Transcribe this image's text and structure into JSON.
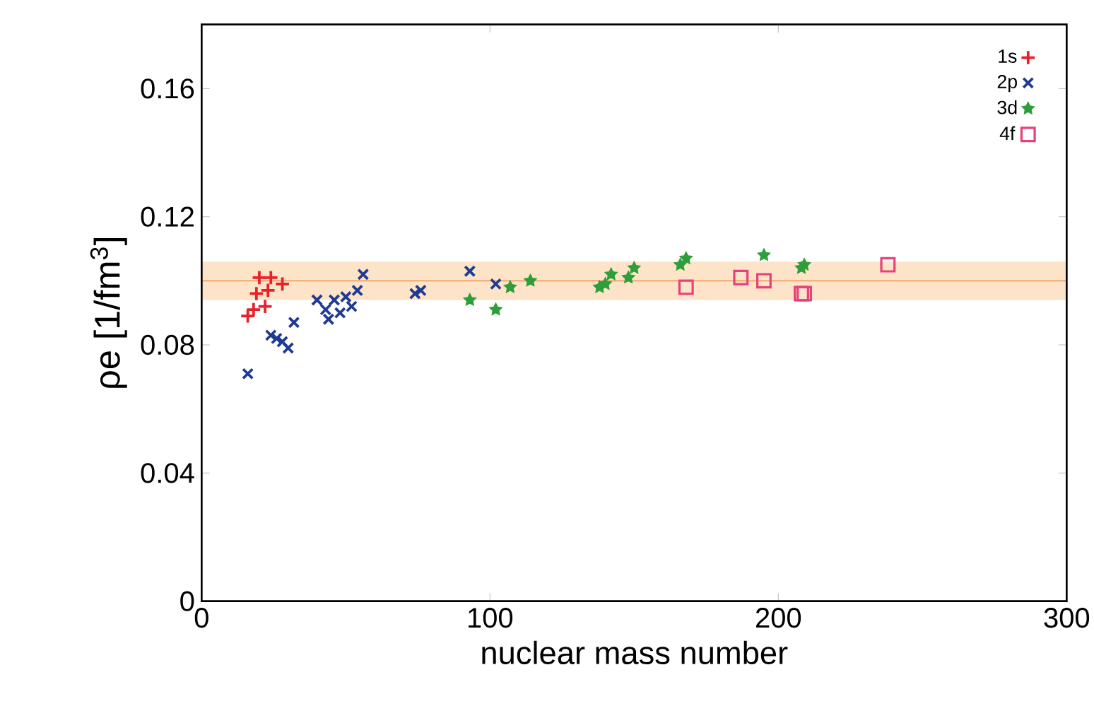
{
  "chart_data": {
    "type": "scatter",
    "xlabel": "nuclear mass number",
    "ylabel": "ρe [1/fm$^{3}$]",
    "xlim": [
      0,
      300
    ],
    "xticks": [
      0,
      100,
      200,
      300
    ],
    "ylim": [
      0,
      0.18
    ],
    "yticks": [
      0,
      0.04,
      0.08,
      0.12,
      0.16
    ],
    "legend": "top right",
    "grid": false,
    "bands": [
      {
        "axis": "y",
        "from": 0.094,
        "to": 0.106,
        "color": "#fde3c8"
      }
    ],
    "ref_lines": [
      {
        "axis": "y",
        "value": 0.1,
        "color": "#f0a060"
      }
    ],
    "series": [
      {
        "name": "1s",
        "color": "#e8202a",
        "marker": "plus",
        "x": [
          16,
          18,
          19,
          22,
          20,
          24,
          23,
          28
        ],
        "values": [
          0.089,
          0.091,
          0.096,
          0.092,
          0.101,
          0.101,
          0.097,
          0.099
        ]
      },
      {
        "name": "2p",
        "color": "#1f3a93",
        "marker": "cross",
        "x": [
          16,
          24,
          26,
          28,
          30,
          32,
          40,
          43,
          44,
          46,
          48,
          50,
          52,
          54,
          56,
          74,
          76,
          93,
          102
        ],
        "values": [
          0.071,
          0.083,
          0.082,
          0.081,
          0.079,
          0.087,
          0.094,
          0.091,
          0.088,
          0.094,
          0.09,
          0.095,
          0.092,
          0.097,
          0.102,
          0.096,
          0.097,
          0.103,
          0.099
        ]
      },
      {
        "name": "3d",
        "color": "#2e9e3a",
        "marker": "star",
        "x": [
          93,
          102,
          107,
          114,
          138,
          140,
          142,
          148,
          150,
          166,
          168,
          195,
          208,
          209
        ],
        "values": [
          0.094,
          0.091,
          0.098,
          0.1,
          0.098,
          0.099,
          0.102,
          0.101,
          0.104,
          0.105,
          0.107,
          0.108,
          0.104,
          0.105
        ]
      },
      {
        "name": "4f",
        "color": "#e8407a",
        "marker": "square",
        "x": [
          168,
          187,
          195,
          208,
          209,
          238
        ],
        "values": [
          0.098,
          0.101,
          0.1,
          0.096,
          0.096,
          0.105
        ]
      }
    ]
  }
}
